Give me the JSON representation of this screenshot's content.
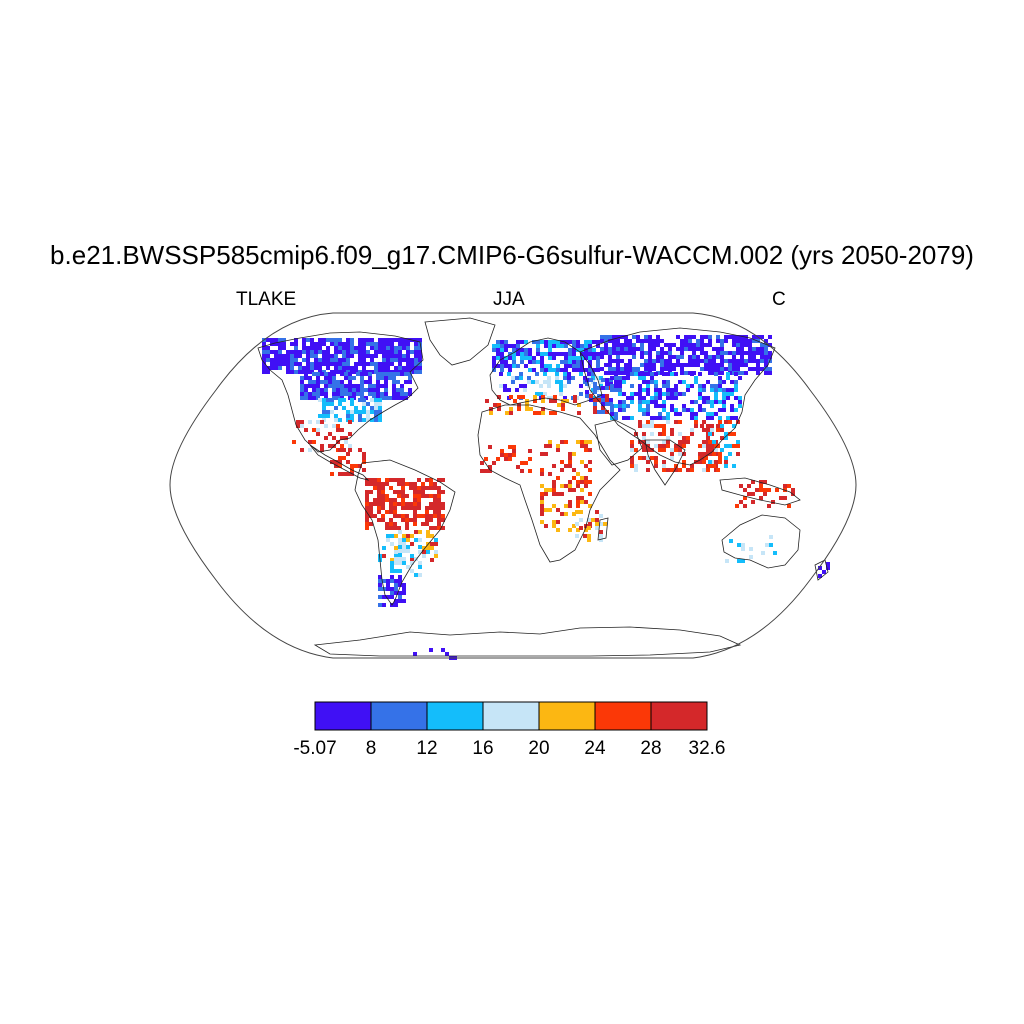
{
  "title": "b.e21.BWSSP585cmip6.f09_g17.CMIP6-G6sulfur-WACCM.002 (yrs 2050-2079)",
  "subtitle_left": "TLAKE",
  "subtitle_center": "JJA",
  "subtitle_right": "C",
  "projection": "Robinson",
  "colorbar": {
    "labels": [
      "-5.07",
      "8",
      "12",
      "16",
      "20",
      "24",
      "28",
      "32.6"
    ],
    "colors": [
      "#4010f5",
      "#3572e8",
      "#14bdfb",
      "#c6e5f7",
      "#fcb712",
      "#fb3807",
      "#d4282a"
    ]
  },
  "legend_position": "bottom"
}
